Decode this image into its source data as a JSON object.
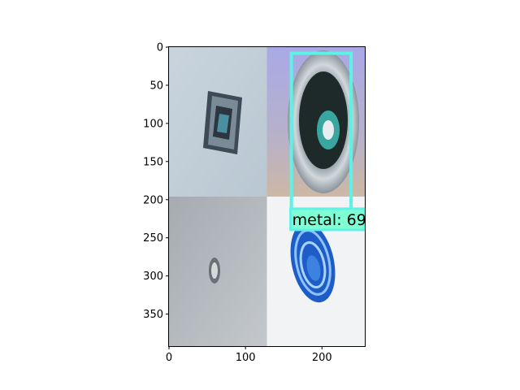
{
  "chart_data": {
    "type": "image",
    "title": "",
    "xlabel": "",
    "ylabel": "",
    "xlim": [
      0,
      256
    ],
    "ylim": [
      392,
      0
    ],
    "x_ticks": [
      0,
      100,
      200
    ],
    "y_ticks": [
      0,
      50,
      100,
      150,
      200,
      250,
      300,
      350
    ],
    "tiles": [
      {
        "name": "tile-top-left",
        "x0": 0,
        "x1": 128,
        "y0": 0,
        "y1": 196,
        "subject": "crumpled metallic wrapper on light background"
      },
      {
        "name": "tile-top-right",
        "x0": 128,
        "x1": 256,
        "y0": 0,
        "y1": 196,
        "subject": "open beverage can top with pull tab"
      },
      {
        "name": "tile-bottom-left",
        "x0": 0,
        "x1": 128,
        "y0": 196,
        "y1": 392,
        "subject": "small crumpled foil ball on grey background"
      },
      {
        "name": "tile-bottom-right",
        "x0": 128,
        "x1": 256,
        "y0": 196,
        "y1": 392,
        "subject": "blue crushed plastic lid on white background"
      }
    ],
    "detections": [
      {
        "label": "metal: 69",
        "x0": 160,
        "y0": 8,
        "x1": 238,
        "y1": 214,
        "color": "#5cf2e6",
        "label_bg": "#7fffd4"
      }
    ]
  }
}
